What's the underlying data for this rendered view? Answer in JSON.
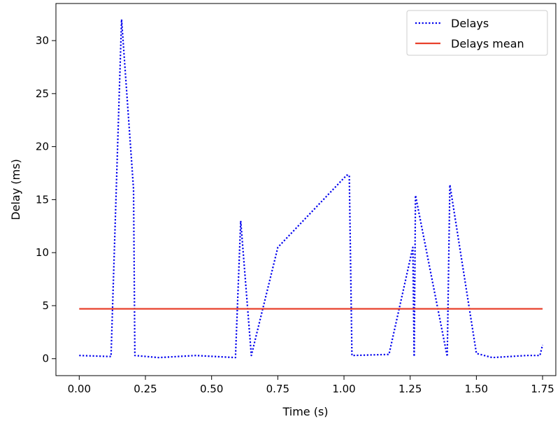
{
  "chart_data": {
    "type": "line",
    "xlabel": "Time (s)",
    "ylabel": "Delay (ms)",
    "xlim": [
      -0.088,
      1.8
    ],
    "ylim": [
      -1.6,
      33.5
    ],
    "xticks": [
      0.0,
      0.25,
      0.5,
      0.75,
      1.0,
      1.25,
      1.5,
      1.75
    ],
    "xtick_labels": [
      "0.00",
      "0.25",
      "0.50",
      "0.75",
      "1.00",
      "1.25",
      "1.50",
      "1.75"
    ],
    "yticks": [
      0,
      5,
      10,
      15,
      20,
      25,
      30
    ],
    "ytick_labels": [
      "0",
      "5",
      "10",
      "15",
      "20",
      "25",
      "30"
    ],
    "grid": false,
    "legend_position": "top-right",
    "series": [
      {
        "name": "Delays",
        "style": "dotted",
        "color": "#0000ee",
        "x": [
          0.0,
          0.12,
          0.16,
          0.205,
          0.21,
          0.3,
          0.44,
          0.59,
          0.61,
          0.65,
          0.75,
          1.01,
          1.02,
          1.03,
          1.17,
          1.26,
          1.265,
          1.27,
          1.39,
          1.4,
          1.5,
          1.56,
          1.69,
          1.74,
          1.75
        ],
        "y": [
          0.3,
          0.2,
          32.0,
          16.0,
          0.3,
          0.1,
          0.3,
          0.1,
          13.0,
          0.3,
          10.5,
          17.3,
          17.3,
          0.3,
          0.4,
          10.5,
          0.2,
          15.4,
          0.2,
          16.4,
          0.5,
          0.1,
          0.3,
          0.3,
          1.3
        ]
      },
      {
        "name": "Delays mean",
        "style": "solid",
        "color": "#e8412c",
        "x": [
          0.0,
          1.75
        ],
        "y": [
          4.7,
          4.7
        ]
      }
    ]
  }
}
